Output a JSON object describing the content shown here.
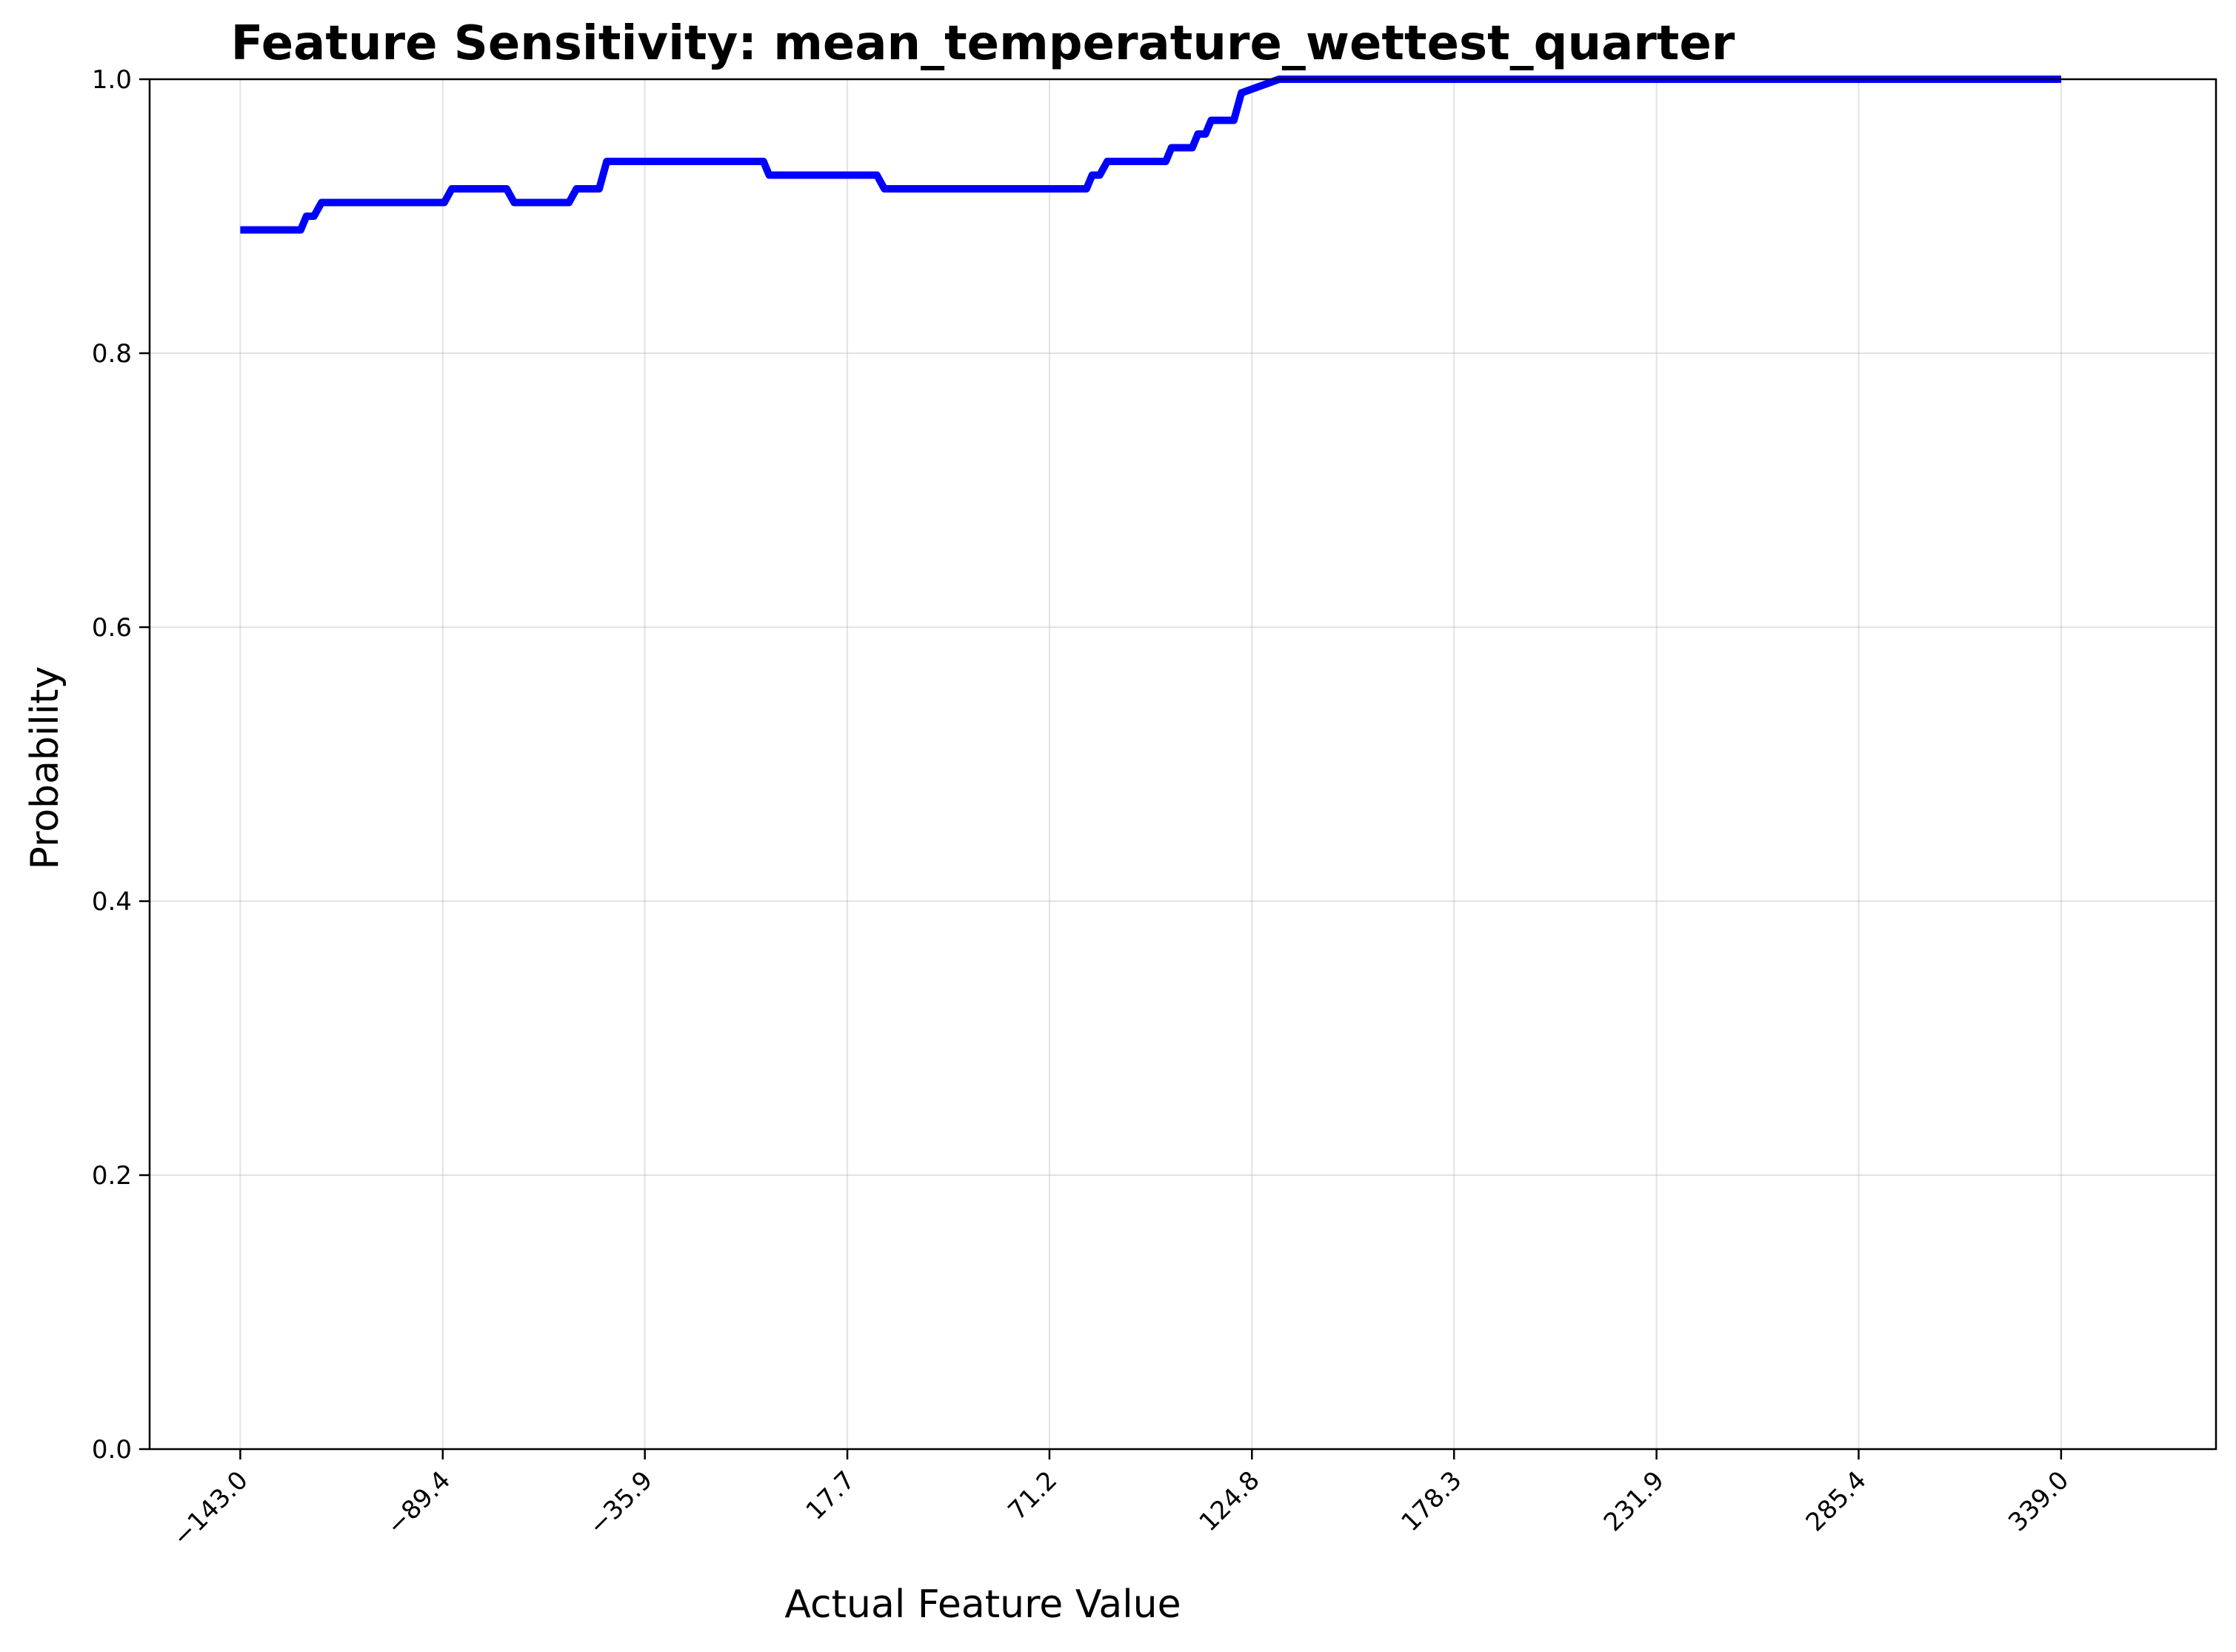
{
  "chart_data": {
    "type": "line",
    "title": "Feature Sensitivity: mean_temperature_wettest_quarter",
    "xlabel": "Actual Feature Value",
    "ylabel": "Probability",
    "xlim": [
      -167,
      380
    ],
    "ylim": [
      0,
      1
    ],
    "grid": true,
    "line_color": "#0000ff",
    "x_ticks": [
      -143.0,
      -89.4,
      -35.9,
      17.7,
      71.2,
      124.8,
      178.3,
      231.9,
      285.4,
      339.0
    ],
    "x_tick_labels": [
      "−143.0",
      "−89.4",
      "−35.9",
      "17.7",
      "71.2",
      "124.8",
      "178.3",
      "231.9",
      "285.4",
      "339.0"
    ],
    "y_ticks": [
      0.0,
      0.2,
      0.4,
      0.6,
      0.8,
      1.0
    ],
    "y_tick_labels": [
      "0.0",
      "0.2",
      "0.4",
      "0.6",
      "0.8",
      "1.0"
    ],
    "series": [
      {
        "x": [
          -143.0,
          -127.0,
          -125.5,
          -123.5,
          -121.5,
          -89.0,
          -87.0,
          -72.5,
          -70.5,
          -56.0,
          -54.0,
          -48.0,
          -46.0,
          -4.5,
          -3.0,
          25.5,
          27.5,
          81.0,
          82.5,
          84.5,
          86.5,
          102.0,
          103.5,
          109.0,
          110.5,
          112.5,
          114.0,
          120.0,
          122.0,
          132.0,
          339.0
        ],
        "y": [
          0.89,
          0.89,
          0.9,
          0.9,
          0.91,
          0.91,
          0.92,
          0.92,
          0.91,
          0.91,
          0.92,
          0.92,
          0.94,
          0.94,
          0.93,
          0.93,
          0.92,
          0.92,
          0.93,
          0.93,
          0.94,
          0.94,
          0.95,
          0.95,
          0.96,
          0.96,
          0.97,
          0.97,
          0.99,
          1.0,
          1.0
        ]
      }
    ]
  }
}
